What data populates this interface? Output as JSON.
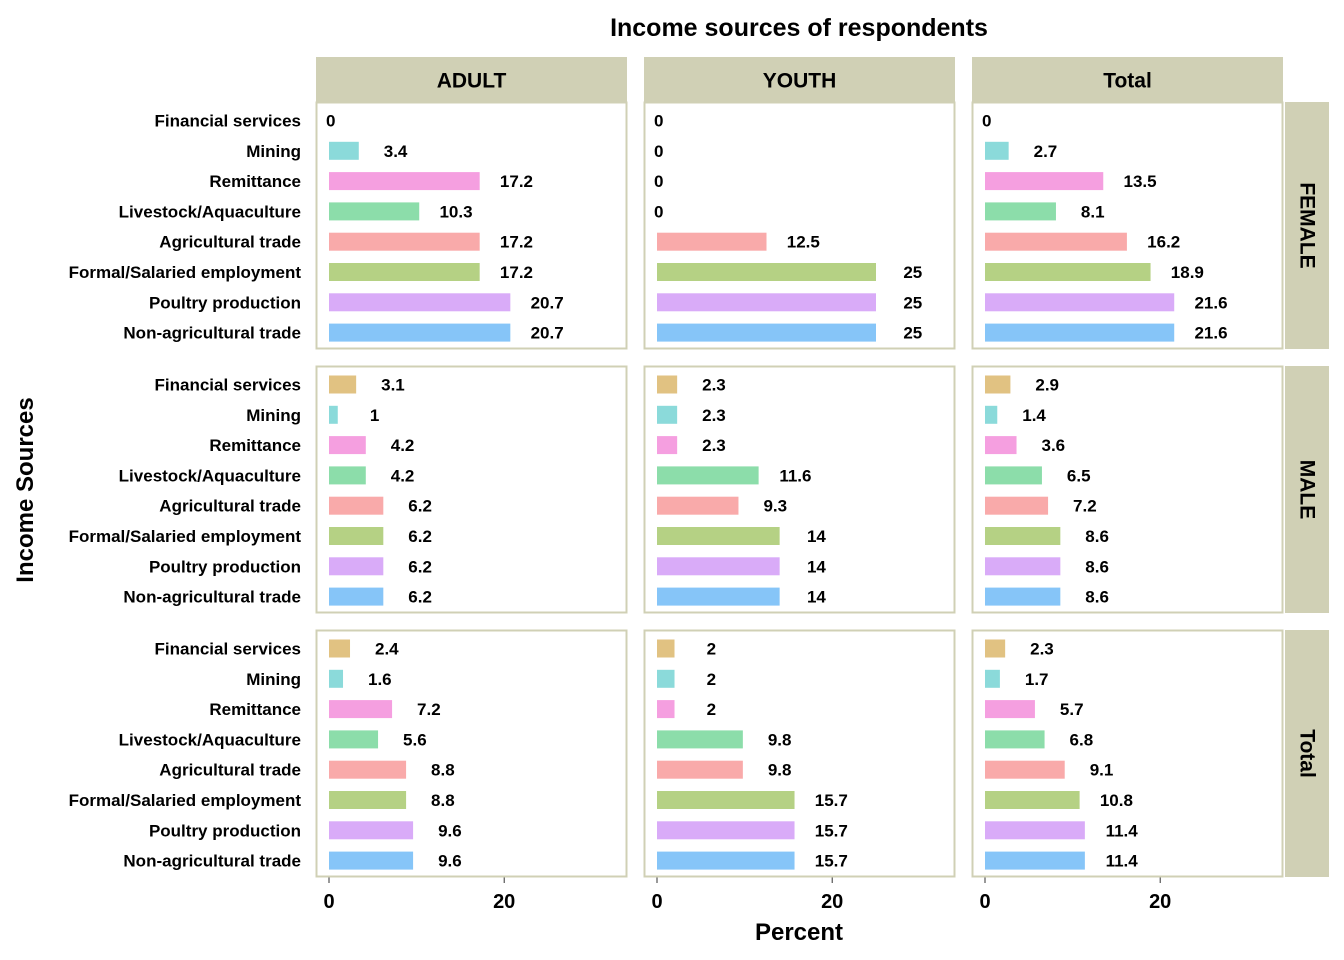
{
  "chart_data": {
    "type": "bar",
    "orientation": "horizontal",
    "title": "Income sources of respondents",
    "xlabel": "Percent",
    "ylabel": "Income Sources",
    "xlim": [
      0,
      34
    ],
    "x_ticks": [
      0,
      20
    ],
    "column_facets": [
      "ADULT",
      "YOUTH",
      "Total"
    ],
    "row_facets": [
      "FEMALE",
      "MALE",
      "Total"
    ],
    "categories": [
      "Financial services",
      "Mining",
      "Remittance",
      "Livestock/Aquaculture",
      "Agricultural trade",
      "Formal/Salaried employment",
      "Poultry production",
      "Non-agricultural trade"
    ],
    "category_colors": [
      "#E1C282",
      "#8BDADA",
      "#F59FE0",
      "#8CDDAA",
      "#F9AAAA",
      "#B5D184",
      "#D9ABF8",
      "#86C5F8"
    ],
    "panel_strip_color": "#D0D0B5",
    "panel_border_color": "#D0D0B5",
    "panels": [
      {
        "row": "FEMALE",
        "col": "ADULT",
        "values": [
          0,
          3.4,
          17.2,
          10.3,
          17.2,
          17.2,
          20.7,
          20.7
        ]
      },
      {
        "row": "FEMALE",
        "col": "YOUTH",
        "values": [
          0,
          0,
          0,
          0,
          12.5,
          25,
          25,
          25
        ]
      },
      {
        "row": "FEMALE",
        "col": "Total",
        "values": [
          0,
          2.7,
          13.5,
          8.1,
          16.2,
          18.9,
          21.6,
          21.6
        ]
      },
      {
        "row": "MALE",
        "col": "ADULT",
        "values": [
          3.1,
          1,
          4.2,
          4.2,
          6.2,
          6.2,
          6.2,
          6.2
        ]
      },
      {
        "row": "MALE",
        "col": "YOUTH",
        "values": [
          2.3,
          2.3,
          2.3,
          11.6,
          9.3,
          14,
          14,
          14
        ]
      },
      {
        "row": "MALE",
        "col": "Total",
        "values": [
          2.9,
          1.4,
          3.6,
          6.5,
          7.2,
          8.6,
          8.6,
          8.6
        ]
      },
      {
        "row": "Total",
        "col": "ADULT",
        "values": [
          2.4,
          1.6,
          7.2,
          5.6,
          8.8,
          8.8,
          9.6,
          9.6
        ]
      },
      {
        "row": "Total",
        "col": "YOUTH",
        "values": [
          2,
          2,
          2,
          9.8,
          9.8,
          15.7,
          15.7,
          15.7
        ]
      },
      {
        "row": "Total",
        "col": "Total",
        "values": [
          2.3,
          1.7,
          5.7,
          6.8,
          9.1,
          10.8,
          11.4,
          11.4
        ]
      }
    ]
  }
}
